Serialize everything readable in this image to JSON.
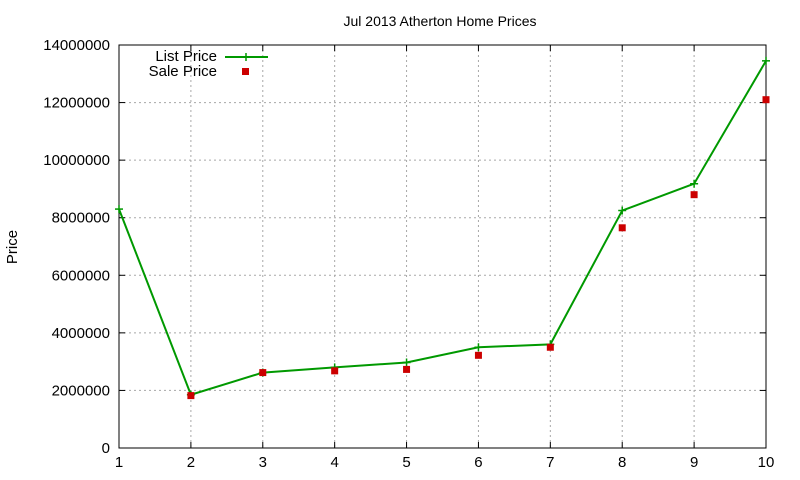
{
  "chart_data": {
    "type": "line",
    "title": "Jul 2013 Atherton Home Prices",
    "xlabel": "",
    "ylabel": "Price",
    "xlim": [
      1,
      10
    ],
    "ylim": [
      0,
      14000000
    ],
    "x": [
      1,
      2,
      3,
      4,
      5,
      6,
      7,
      8,
      9,
      10
    ],
    "xticks": [
      "1",
      "2",
      "3",
      "4",
      "5",
      "6",
      "7",
      "8",
      "9",
      "10"
    ],
    "yticks": [
      "0",
      "2000000",
      "4000000",
      "6000000",
      "8000000",
      "10000000",
      "12000000",
      "14000000"
    ],
    "ytick_values": [
      0,
      2000000,
      4000000,
      6000000,
      8000000,
      10000000,
      12000000,
      14000000
    ],
    "grid": true,
    "legend_position": "top-left",
    "series": [
      {
        "name": "List Price",
        "style": "line+plus",
        "color": "#009900",
        "values": [
          8300000,
          1850000,
          2620000,
          2800000,
          2970000,
          3500000,
          3600000,
          8250000,
          9180000,
          13450000
        ]
      },
      {
        "name": "Sale Price",
        "style": "square",
        "color": "#cc0000",
        "values": [
          null,
          1820000,
          2620000,
          2680000,
          2730000,
          3220000,
          3500000,
          7650000,
          8800000,
          12100000
        ]
      }
    ]
  }
}
